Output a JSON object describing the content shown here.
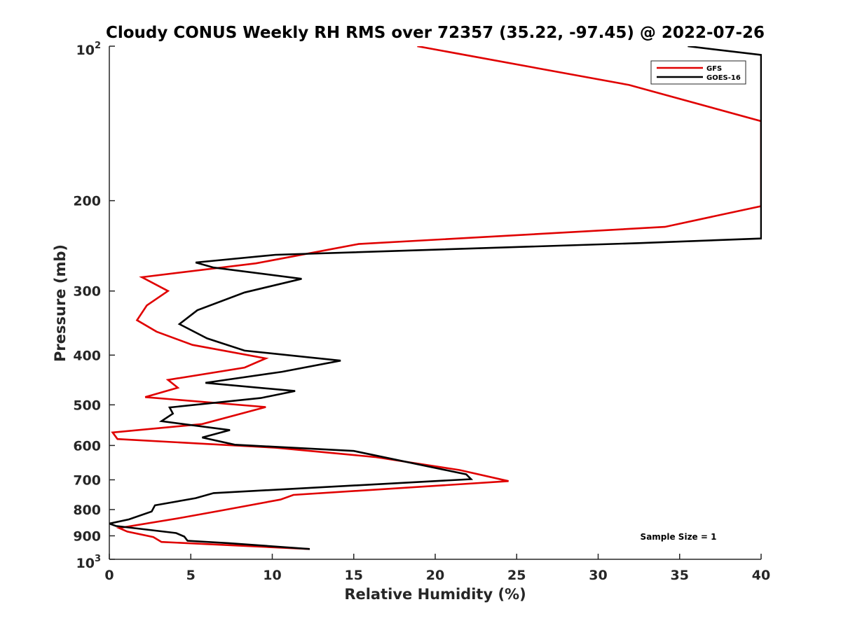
{
  "chart_data": {
    "type": "line",
    "title": "Cloudy CONUS Weekly RH RMS over 72357 (35.22, -97.45) @ 2022-07-26",
    "xlabel": "Relative Humidity (%)",
    "ylabel": "Pressure (mb)",
    "xlim": [
      0,
      40
    ],
    "ylim": [
      100,
      1000
    ],
    "y_scale": "log",
    "y_reversed": true,
    "grid": false,
    "legend_position": "top-right",
    "x_ticks": [
      "0",
      "5",
      "10",
      "15",
      "20",
      "25",
      "30",
      "35",
      "40"
    ],
    "y_ticks": [
      {
        "value": 100,
        "base": "10",
        "exp": "2"
      },
      {
        "value": 200,
        "label": "200"
      },
      {
        "value": 300,
        "label": "300"
      },
      {
        "value": 400,
        "label": "400"
      },
      {
        "value": 500,
        "label": "500"
      },
      {
        "value": 600,
        "label": "600"
      },
      {
        "value": 700,
        "label": "700"
      },
      {
        "value": 800,
        "label": "800"
      },
      {
        "value": 900,
        "label": "900"
      },
      {
        "value": 1000,
        "base": "10",
        "exp": "3"
      }
    ],
    "annotation": "Sample Size = 1",
    "series": [
      {
        "name": "GFS",
        "color": "#e00000",
        "points": [
          [
            18.9,
            100
          ],
          [
            31.9,
            119
          ],
          [
            40.0,
            140
          ],
          [
            40.0,
            205
          ],
          [
            34.1,
            225
          ],
          [
            15.3,
            243
          ],
          [
            9.0,
            265
          ],
          [
            2.0,
            282
          ],
          [
            3.6,
            300
          ],
          [
            2.3,
            320
          ],
          [
            1.7,
            342
          ],
          [
            2.9,
            360
          ],
          [
            5.1,
            382
          ],
          [
            9.6,
            406
          ],
          [
            8.3,
            423
          ],
          [
            3.6,
            447
          ],
          [
            4.2,
            463
          ],
          [
            2.2,
            483
          ],
          [
            9.6,
            505
          ],
          [
            5.7,
            545
          ],
          [
            0.2,
            566
          ],
          [
            0.5,
            583
          ],
          [
            10.2,
            606
          ],
          [
            16.3,
            632
          ],
          [
            21.5,
            670
          ],
          [
            24.5,
            704
          ],
          [
            11.3,
            749
          ],
          [
            10.5,
            765
          ],
          [
            6.8,
            804
          ],
          [
            4.3,
            831
          ],
          [
            0.6,
            869
          ],
          [
            1.1,
            883
          ],
          [
            2.7,
            905
          ],
          [
            3.2,
            925
          ],
          [
            12.3,
            955
          ]
        ]
      },
      {
        "name": "GOES-16",
        "color": "#000000",
        "points": [
          [
            35.5,
            100
          ],
          [
            40.0,
            104
          ],
          [
            40.0,
            237
          ],
          [
            32.5,
            242
          ],
          [
            10.2,
            255
          ],
          [
            5.3,
            264
          ],
          [
            6.4,
            270
          ],
          [
            11.8,
            284
          ],
          [
            8.3,
            302
          ],
          [
            5.4,
            327
          ],
          [
            4.3,
            348
          ],
          [
            6.0,
            371
          ],
          [
            8.3,
            392
          ],
          [
            14.2,
            410
          ],
          [
            10.6,
            431
          ],
          [
            5.9,
            453
          ],
          [
            11.4,
            470
          ],
          [
            9.3,
            485
          ],
          [
            3.7,
            506
          ],
          [
            3.9,
            520
          ],
          [
            3.2,
            538
          ],
          [
            7.4,
            560
          ],
          [
            5.7,
            579
          ],
          [
            7.7,
            598
          ],
          [
            15.0,
            615
          ],
          [
            21.9,
            683
          ],
          [
            22.2,
            698
          ],
          [
            6.4,
            743
          ],
          [
            5.3,
            760
          ],
          [
            2.8,
            785
          ],
          [
            2.6,
            807
          ],
          [
            1.2,
            836
          ],
          [
            0.0,
            852
          ],
          [
            0.4,
            861
          ],
          [
            4.1,
            889
          ],
          [
            4.6,
            903
          ],
          [
            4.8,
            920
          ],
          [
            7.3,
            930
          ],
          [
            12.3,
            955
          ]
        ]
      }
    ]
  }
}
